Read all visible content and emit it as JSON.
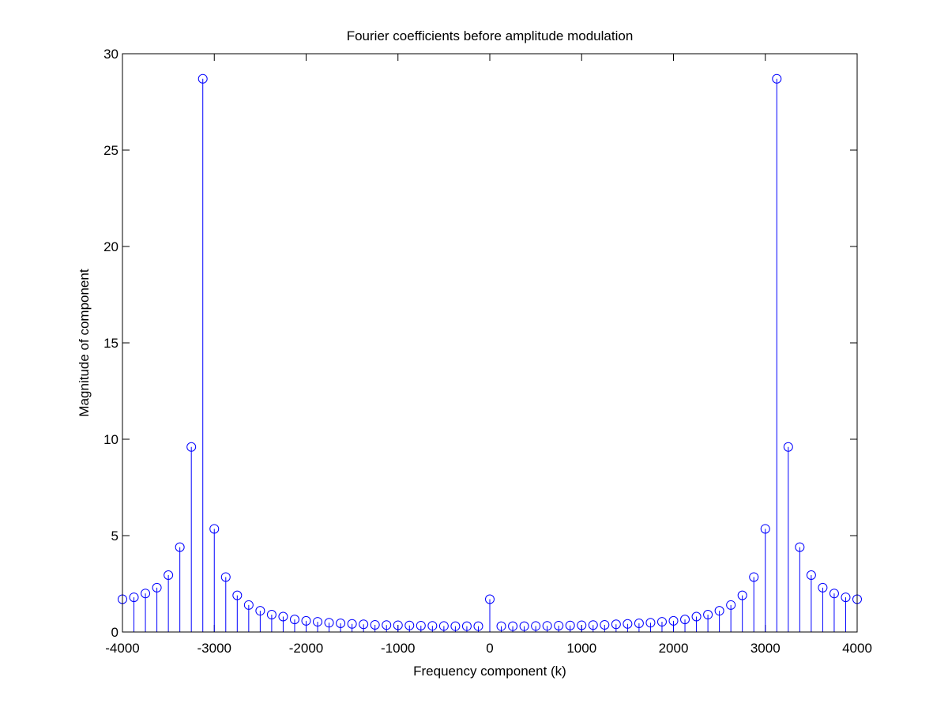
{
  "chart_data": {
    "type": "stem",
    "title": "Fourier coefficients before amplitude modulation",
    "xlabel": "Frequency component (k)",
    "ylabel": "Magnitude of component",
    "xlim": [
      -4000,
      4000
    ],
    "ylim": [
      0,
      30
    ],
    "xticks": [
      -4000,
      -3000,
      -2000,
      -1000,
      0,
      1000,
      2000,
      3000,
      4000
    ],
    "yticks": [
      0,
      5,
      10,
      15,
      20,
      25,
      30
    ],
    "grid": false,
    "legend": "none",
    "series": [
      {
        "color": "#0000ff",
        "marker": "circle",
        "x": [
          -4000,
          -3875,
          -3750,
          -3625,
          -3500,
          -3375,
          -3250,
          -3125,
          -3000,
          -2875,
          -2750,
          -2625,
          -2500,
          -2375,
          -2250,
          -2125,
          -2000,
          -1875,
          -1750,
          -1625,
          -1500,
          -1375,
          -1250,
          -1125,
          -1000,
          -875,
          -750,
          -625,
          -500,
          -375,
          -250,
          -125,
          0,
          125,
          250,
          375,
          500,
          625,
          750,
          875,
          1000,
          1125,
          1250,
          1375,
          1500,
          1625,
          1750,
          1875,
          2000,
          2125,
          2250,
          2375,
          2500,
          2625,
          2750,
          2875,
          3000,
          3125,
          3250,
          3375,
          3500,
          3625,
          3750,
          3875,
          4000
        ],
        "y": [
          1.7,
          1.8,
          2.0,
          2.3,
          2.95,
          4.4,
          9.6,
          28.7,
          5.35,
          2.85,
          1.9,
          1.4,
          1.1,
          0.9,
          0.8,
          0.65,
          0.58,
          0.53,
          0.48,
          0.45,
          0.42,
          0.4,
          0.37,
          0.36,
          0.35,
          0.34,
          0.33,
          0.32,
          0.31,
          0.3,
          0.3,
          0.3,
          1.7,
          0.3,
          0.3,
          0.3,
          0.31,
          0.32,
          0.33,
          0.34,
          0.35,
          0.36,
          0.37,
          0.4,
          0.42,
          0.45,
          0.48,
          0.53,
          0.58,
          0.65,
          0.8,
          0.9,
          1.1,
          1.4,
          1.9,
          2.85,
          5.35,
          28.7,
          9.6,
          4.4,
          2.95,
          2.3,
          2.0,
          1.8,
          1.7
        ]
      }
    ]
  }
}
